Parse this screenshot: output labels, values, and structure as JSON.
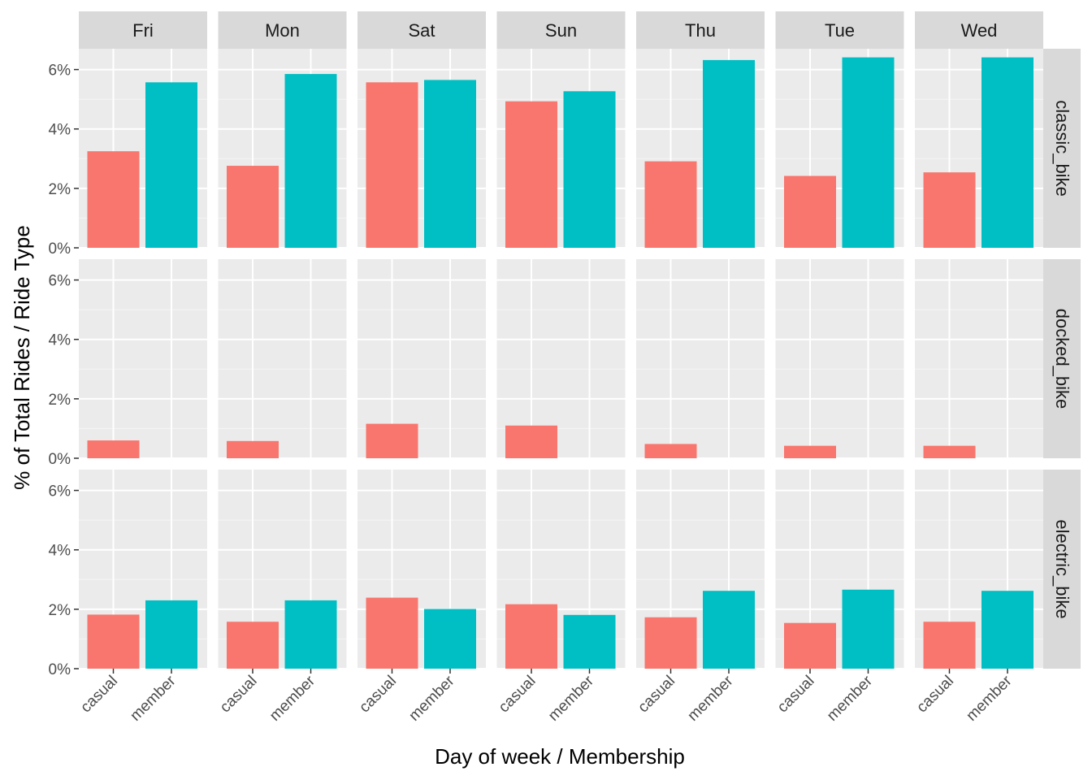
{
  "chart_data": {
    "type": "bar",
    "xlabel": "Day of week / Membership",
    "ylabel": "% of Total Rides / Ride Type",
    "ylim": [
      0,
      0.067
    ],
    "y_ticks": [
      0,
      0.02,
      0.04,
      0.06
    ],
    "y_tick_labels": [
      "0%",
      "2%",
      "4%",
      "6%"
    ],
    "grid": true,
    "legend": "none",
    "facet_cols": [
      "Fri",
      "Mon",
      "Sat",
      "Sun",
      "Thu",
      "Tue",
      "Wed"
    ],
    "facet_rows": [
      "classic_bike",
      "docked_bike",
      "electric_bike"
    ],
    "categories": [
      "casual",
      "member"
    ],
    "colors": {
      "casual": "#F8766D",
      "member": "#00BFC4"
    },
    "series": [
      {
        "facet_row": "classic_bike",
        "values": {
          "Fri": [
            0.0325,
            0.0557
          ],
          "Mon": [
            0.0276,
            0.0585
          ],
          "Sat": [
            0.0557,
            0.0565
          ],
          "Sun": [
            0.0493,
            0.0527
          ],
          "Thu": [
            0.0291,
            0.0632
          ],
          "Tue": [
            0.0242,
            0.0641
          ],
          "Wed": [
            0.0254,
            0.0641
          ]
        }
      },
      {
        "facet_row": "docked_bike",
        "values": {
          "Fri": [
            0.006,
            0.0
          ],
          "Mon": [
            0.0058,
            0.0
          ],
          "Sat": [
            0.0116,
            0.0
          ],
          "Sun": [
            0.011,
            0.0
          ],
          "Thu": [
            0.0048,
            0.0
          ],
          "Tue": [
            0.0042,
            0.0
          ],
          "Wed": [
            0.0042,
            0.0
          ]
        }
      },
      {
        "facet_row": "electric_bike",
        "values": {
          "Fri": [
            0.0182,
            0.023
          ],
          "Mon": [
            0.0158,
            0.023
          ],
          "Sat": [
            0.0239,
            0.0201
          ],
          "Sun": [
            0.0217,
            0.0181
          ],
          "Thu": [
            0.0173,
            0.0262
          ],
          "Tue": [
            0.0154,
            0.0266
          ],
          "Wed": [
            0.0158,
            0.0262
          ]
        }
      }
    ]
  }
}
